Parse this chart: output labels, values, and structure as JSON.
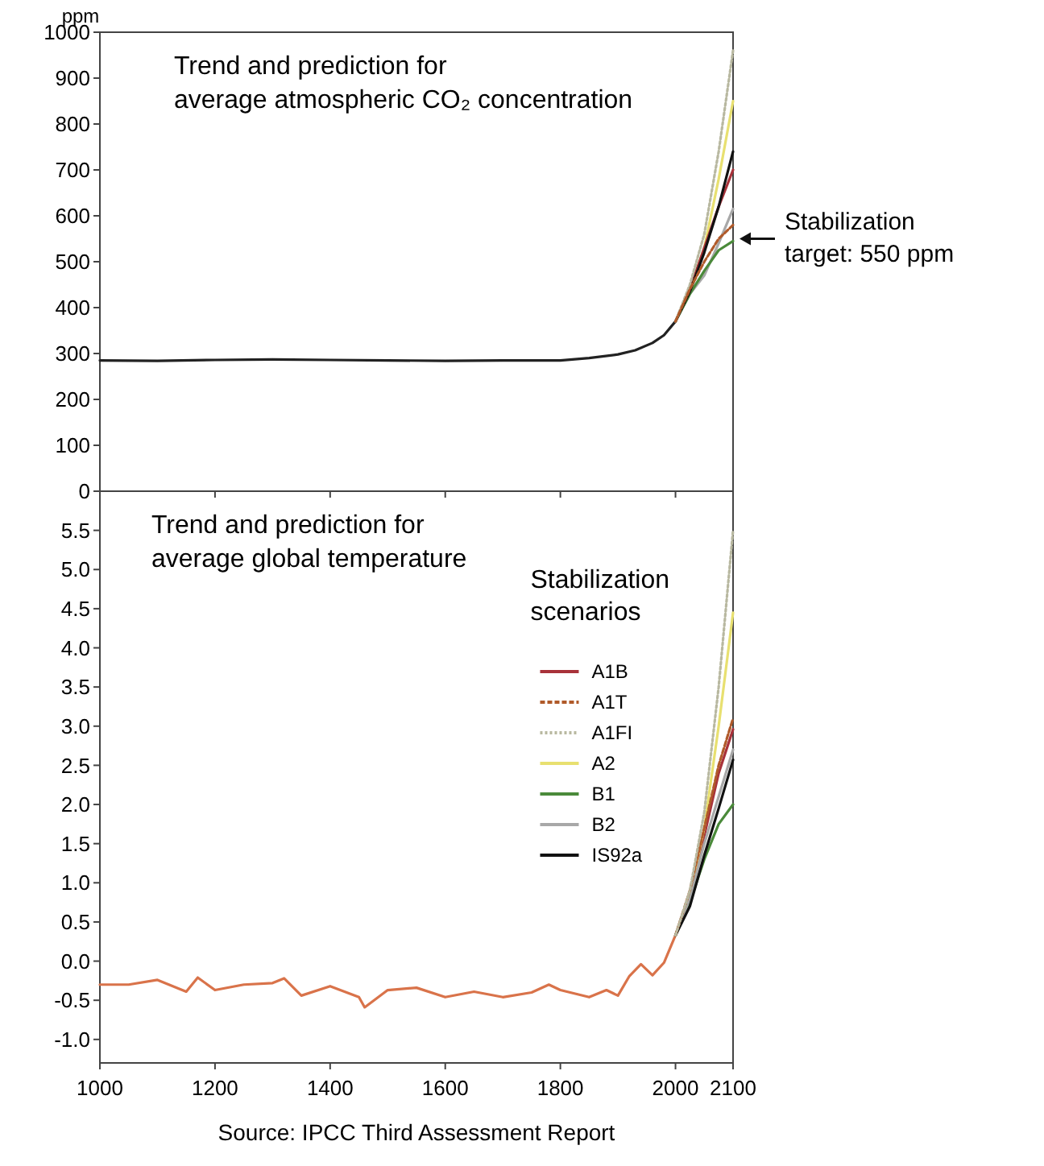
{
  "chart_data": [
    {
      "type": "line",
      "title": "Trend and prediction for average atmospheric CO₂ concentration",
      "ylabel": "ppm",
      "xlim": [
        1000,
        2100
      ],
      "xticks": [
        1000,
        1200,
        1400,
        1600,
        1800,
        2000,
        2100
      ],
      "ylim": [
        0,
        1000
      ],
      "yticks": [
        0,
        100,
        200,
        300,
        400,
        500,
        600,
        700,
        800,
        900,
        1000
      ],
      "tick_labels": "y",
      "series": [
        {
          "color": "#222222",
          "x": [
            1000,
            1100,
            1200,
            1300,
            1400,
            1500,
            1600,
            1700,
            1800,
            1850,
            1900,
            1930,
            1960,
            1980,
            2000
          ],
          "values": [
            285,
            284,
            286,
            287,
            286,
            285,
            284,
            285,
            285,
            290,
            298,
            307,
            323,
            340,
            370
          ]
        },
        {
          "color": "#b8b8a0",
          "line_style": "dotted",
          "x": [
            2000,
            2025,
            2050,
            2075,
            2100
          ],
          "values": [
            370,
            450,
            560,
            740,
            960
          ]
        },
        {
          "color": "#e8e070",
          "x": [
            2000,
            2025,
            2050,
            2075,
            2100
          ],
          "values": [
            370,
            440,
            530,
            680,
            850
          ]
        },
        {
          "color": "#a8323a",
          "x": [
            2000,
            2025,
            2050,
            2075,
            2100
          ],
          "values": [
            370,
            440,
            530,
            620,
            700
          ]
        },
        {
          "color": "#a8a8a8",
          "x": [
            2000,
            2025,
            2050,
            2075,
            2100
          ],
          "values": [
            370,
            430,
            470,
            540,
            615
          ]
        },
        {
          "color": "#b05a2a",
          "line_style": "dashed",
          "x": [
            2000,
            2025,
            2050,
            2075,
            2100
          ],
          "values": [
            370,
            440,
            500,
            550,
            580
          ]
        },
        {
          "color": "#4a8a3a",
          "x": [
            2000,
            2025,
            2050,
            2075,
            2100
          ],
          "values": [
            370,
            430,
            480,
            525,
            545
          ]
        },
        {
          "color": "#111111",
          "x": [
            2000,
            2025,
            2050,
            2075,
            2100
          ],
          "values": [
            370,
            435,
            520,
            620,
            740
          ]
        }
      ],
      "annotations": [
        {
          "text": "Stabilization target: 550 ppm",
          "x": 2100,
          "y": 550
        }
      ]
    },
    {
      "type": "line",
      "title": "Trend and prediction for average global temperature",
      "xlim": [
        1000,
        2100
      ],
      "xticks": [
        1000,
        1200,
        1400,
        1600,
        1800,
        2000,
        2100
      ],
      "ylim": [
        -1.3,
        6.0
      ],
      "yticks": [
        {
          "value": -1,
          "label": "-1.0"
        },
        -0.5,
        {
          "value": 0,
          "label": "0.0"
        },
        0.5,
        {
          "value": 1,
          "label": "1.0"
        },
        1.5,
        {
          "value": 2,
          "label": "2.0"
        },
        2.5,
        {
          "value": 3,
          "label": "3.0"
        },
        3.5,
        {
          "value": 4,
          "label": "4.0"
        },
        4.5,
        {
          "value": 5,
          "label": "5.0"
        },
        5.5
      ],
      "legend": "right",
      "legend_title": "Stabilization scenarios",
      "series": [
        {
          "color": "#d9734a",
          "x": [
            1000,
            1050,
            1100,
            1150,
            1170,
            1200,
            1250,
            1300,
            1320,
            1350,
            1400,
            1450,
            1460,
            1500,
            1550,
            1600,
            1650,
            1700,
            1750,
            1780,
            1800,
            1850,
            1880,
            1900,
            1920,
            1940,
            1960,
            1980,
            2000
          ],
          "values": [
            -0.3,
            -0.3,
            -0.24,
            -0.39,
            -0.21,
            -0.37,
            -0.3,
            -0.28,
            -0.22,
            -0.44,
            -0.32,
            -0.46,
            -0.59,
            -0.37,
            -0.34,
            -0.46,
            -0.39,
            -0.46,
            -0.4,
            -0.3,
            -0.37,
            -0.46,
            -0.37,
            -0.44,
            -0.19,
            -0.04,
            -0.18,
            -0.02,
            0.33
          ]
        },
        {
          "name": "A1B",
          "color": "#a8323a",
          "x": [
            2000,
            2025,
            2050,
            2075,
            2100
          ],
          "values": [
            0.33,
            0.85,
            1.6,
            2.4,
            2.96
          ]
        },
        {
          "name": "A1T",
          "color": "#b05a2a",
          "line_style": "dashed",
          "x": [
            2000,
            2025,
            2050,
            2075,
            2100
          ],
          "values": [
            0.33,
            0.9,
            1.7,
            2.5,
            3.1
          ]
        },
        {
          "name": "A1FI",
          "color": "#b8b8a0",
          "line_style": "dotted",
          "x": [
            2000,
            2025,
            2050,
            2075,
            2100
          ],
          "values": [
            0.33,
            0.9,
            1.9,
            3.5,
            5.5
          ]
        },
        {
          "name": "A2",
          "color": "#e8e070",
          "x": [
            2000,
            2025,
            2050,
            2075,
            2100
          ],
          "values": [
            0.33,
            0.85,
            1.7,
            3.0,
            4.45
          ]
        },
        {
          "name": "B1",
          "color": "#4a8a3a",
          "x": [
            2000,
            2025,
            2050,
            2075,
            2100
          ],
          "values": [
            0.33,
            0.75,
            1.3,
            1.75,
            2.0
          ]
        },
        {
          "name": "B2",
          "color": "#a8a8a8",
          "x": [
            2000,
            2025,
            2050,
            2075,
            2100
          ],
          "values": [
            0.33,
            0.8,
            1.5,
            2.1,
            2.7
          ]
        },
        {
          "name": "IS92a",
          "color": "#111111",
          "x": [
            2000,
            2025,
            2050,
            2075,
            2100
          ],
          "values": [
            0.33,
            0.7,
            1.35,
            1.95,
            2.57
          ]
        }
      ],
      "annotations": [
        "Source: IPCC Third Assessment Report"
      ]
    }
  ]
}
